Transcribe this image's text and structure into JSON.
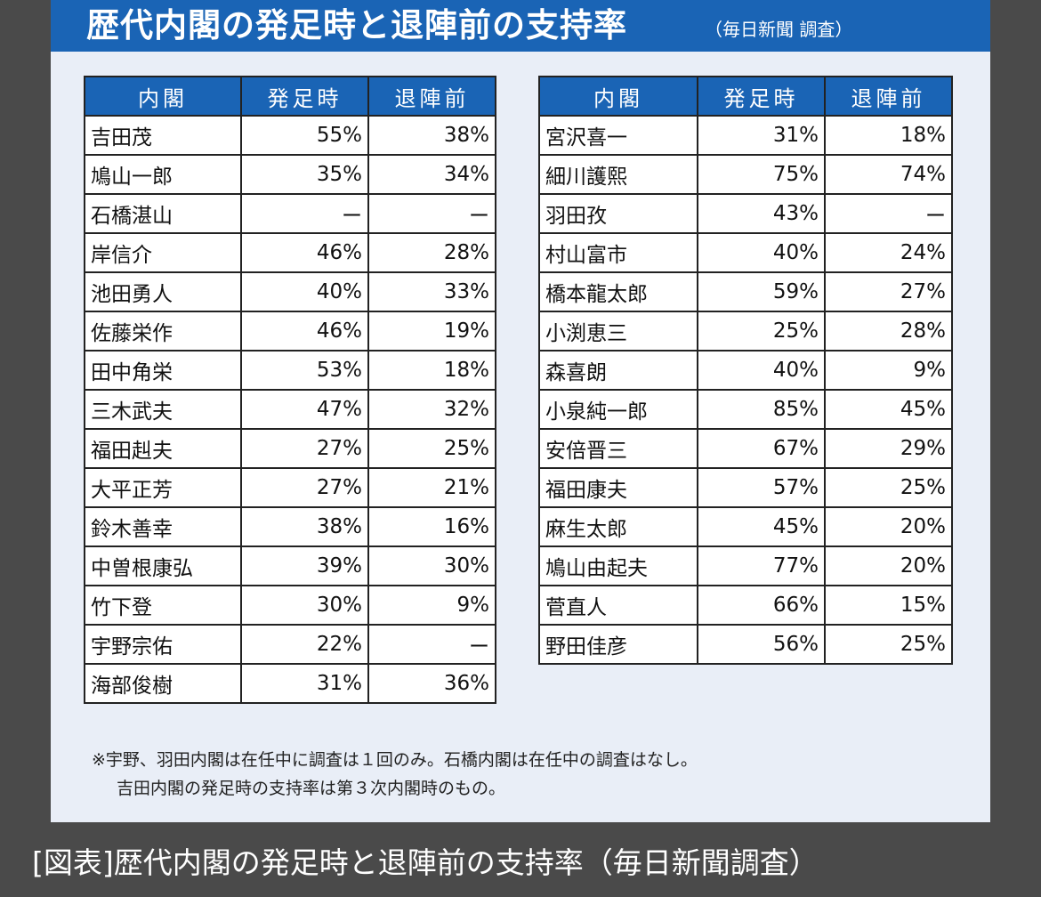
{
  "header": {
    "title": "歴代内閣の発足時と退陣前の支持率",
    "source": "（毎日新聞 調査）"
  },
  "colors": {
    "banner": "#1a64b5",
    "card_bg": "#e9eef7",
    "page_bg": "#4a4a4a"
  },
  "chart_data": {
    "type": "table",
    "title": "歴代内閣の発足時と退陣前の支持率",
    "subtitle": "（毎日新聞 調査）",
    "columns": [
      "内閣",
      "発足時",
      "退陣前"
    ],
    "left_rows": [
      [
        "吉田茂",
        "55%",
        "38%"
      ],
      [
        "鳩山一郎",
        "35%",
        "34%"
      ],
      [
        "石橋湛山",
        "ー",
        "ー"
      ],
      [
        "岸信介",
        "46%",
        "28%"
      ],
      [
        "池田勇人",
        "40%",
        "33%"
      ],
      [
        "佐藤栄作",
        "46%",
        "19%"
      ],
      [
        "田中角栄",
        "53%",
        "18%"
      ],
      [
        "三木武夫",
        "47%",
        "32%"
      ],
      [
        "福田赳夫",
        "27%",
        "25%"
      ],
      [
        "大平正芳",
        "27%",
        "21%"
      ],
      [
        "鈴木善幸",
        "38%",
        "16%"
      ],
      [
        "中曽根康弘",
        "39%",
        "30%"
      ],
      [
        "竹下登",
        "30%",
        "9%"
      ],
      [
        "宇野宗佑",
        "22%",
        "ー"
      ],
      [
        "海部俊樹",
        "31%",
        "36%"
      ]
    ],
    "right_rows": [
      [
        "宮沢喜一",
        "31%",
        "18%"
      ],
      [
        "細川護熙",
        "75%",
        "74%"
      ],
      [
        "羽田孜",
        "43%",
        "ー"
      ],
      [
        "村山富市",
        "40%",
        "24%"
      ],
      [
        "橋本龍太郎",
        "59%",
        "27%"
      ],
      [
        "小渕恵三",
        "25%",
        "28%"
      ],
      [
        "森喜朗",
        "40%",
        "9%"
      ],
      [
        "小泉純一郎",
        "85%",
        "45%"
      ],
      [
        "安倍晋三",
        "67%",
        "29%"
      ],
      [
        "福田康夫",
        "57%",
        "25%"
      ],
      [
        "麻生太郎",
        "45%",
        "20%"
      ],
      [
        "鳩山由起夫",
        "77%",
        "20%"
      ],
      [
        "菅直人",
        "66%",
        "15%"
      ],
      [
        "野田佳彦",
        "56%",
        "25%"
      ]
    ]
  },
  "notes": {
    "line1": "※宇野、羽田内閣は在任中に調査は１回のみ。石橋内閣は在任中の調査はなし。",
    "line2": "吉田内閣の発足時の支持率は第３次内閣時のもの。"
  },
  "caption": "[図表]歴代内閣の発足時と退陣前の支持率（毎日新聞調査）"
}
